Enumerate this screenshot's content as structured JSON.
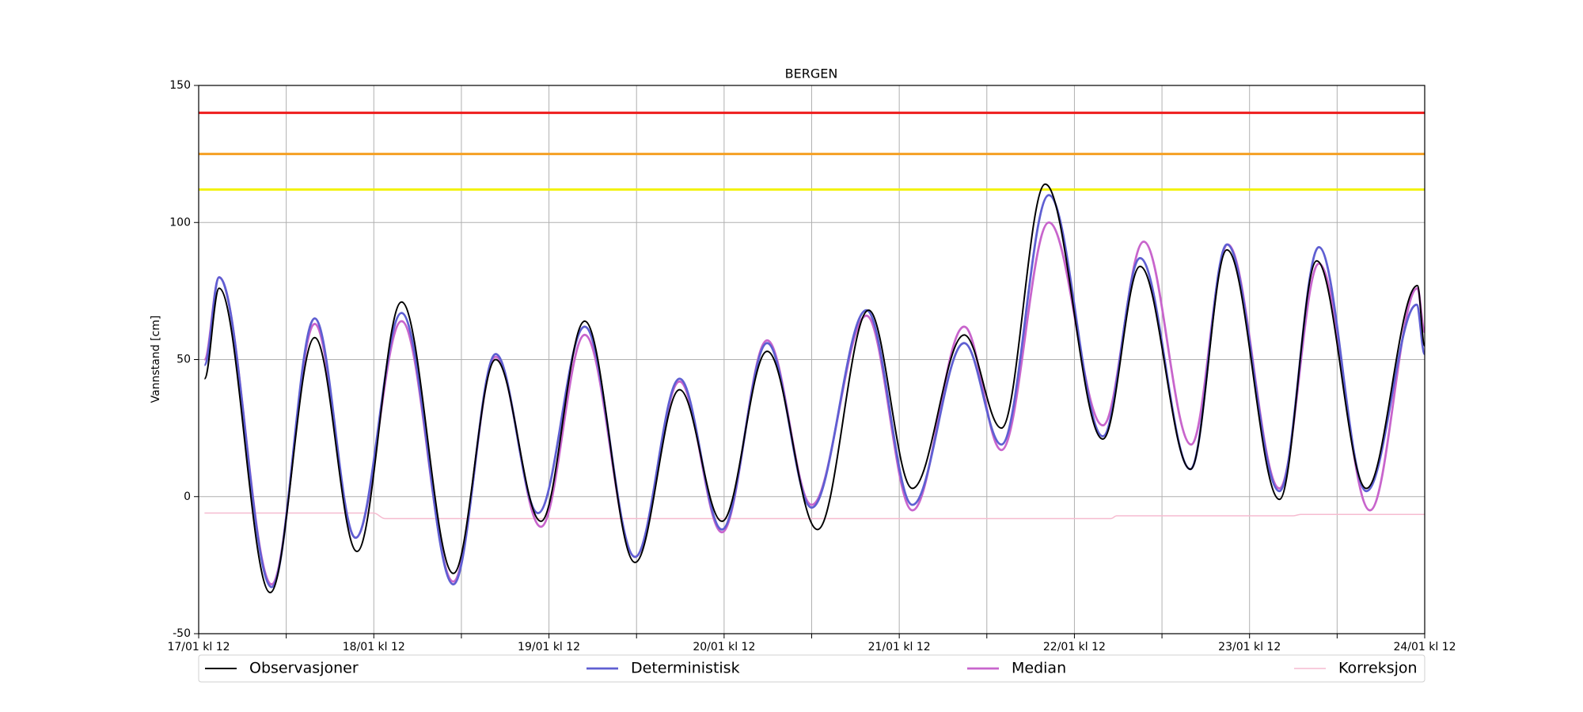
{
  "chart_data": {
    "type": "line",
    "title": "BERGEN",
    "ylabel": "Vannstand [cm]",
    "xlim": [
      0,
      168
    ],
    "ylim": [
      -50,
      150
    ],
    "yticks": [
      -50,
      0,
      50,
      100,
      150
    ],
    "xticks": [
      {
        "value": 0,
        "label": "17/01 kl 12"
      },
      {
        "value": 24,
        "label": "18/01 kl 12"
      },
      {
        "value": 48,
        "label": "19/01 kl 12"
      },
      {
        "value": 72,
        "label": "20/01 kl 12"
      },
      {
        "value": 96,
        "label": "21/01 kl 12"
      },
      {
        "value": 120,
        "label": "22/01 kl 12"
      },
      {
        "value": 144,
        "label": "23/01 kl 12"
      },
      {
        "value": 168,
        "label": "24/01 kl 12"
      }
    ],
    "xminor_ticks": [
      12,
      36,
      60,
      84,
      108,
      132,
      156
    ],
    "grid": true,
    "legend": "bottom",
    "thresholds": [
      {
        "value": 140,
        "color": "#ee1c1c"
      },
      {
        "value": 125,
        "color": "#f5a023"
      },
      {
        "value": 112,
        "color": "#f2f20a"
      }
    ],
    "series": [
      {
        "name": "Observasjoner",
        "color": "#000000",
        "width": 2,
        "x": [
          0.8,
          2.8,
          9.8,
          15.9,
          21.7,
          27.8,
          34.9,
          40.7,
          46.9,
          52.9,
          59.8,
          65.9,
          71.7,
          77.9,
          84.8,
          91.8,
          97.8,
          104.9,
          110,
          116,
          123.9,
          129,
          135.9,
          140.9,
          148.1,
          153.2,
          160,
          167,
          168
        ],
        "values": [
          43,
          76,
          -35,
          58,
          -20,
          71,
          -28,
          50,
          -9,
          64,
          -24,
          39,
          -9,
          53,
          -12,
          68,
          3,
          59,
          25,
          114,
          21,
          84,
          10,
          90,
          -1,
          86,
          3,
          77,
          55
        ]
      },
      {
        "name": "Deterministisk",
        "color": "#5f5fd2",
        "width": 2.8,
        "x": [
          0.8,
          2.8,
          10,
          15.9,
          21.5,
          27.8,
          34.9,
          40.7,
          46.5,
          52.9,
          59.8,
          65.9,
          71.7,
          77.9,
          84,
          91.5,
          97.8,
          104.9,
          110,
          116.5,
          123.9,
          129,
          135.9,
          140.9,
          148.1,
          153.5,
          160,
          166.9,
          168
        ],
        "values": [
          48,
          80,
          -33,
          65,
          -15,
          67,
          -32,
          52,
          -6,
          62,
          -22,
          43,
          -12,
          56,
          -4,
          68,
          -3,
          56,
          19,
          110,
          22,
          87,
          10,
          92,
          2,
          91,
          2,
          70,
          52
        ]
      },
      {
        "name": "Median",
        "color": "#c865cc",
        "width": 2.8,
        "x": [
          0.8,
          2.8,
          10,
          15.9,
          21.5,
          27.8,
          34.9,
          40.7,
          46.9,
          52.9,
          59.8,
          65.9,
          71.7,
          77.9,
          84,
          91.5,
          97.8,
          104.9,
          110,
          116.5,
          123.9,
          129.5,
          136,
          141,
          148.1,
          153.5,
          160.5,
          167,
          168
        ],
        "values": [
          50,
          80,
          -32,
          63,
          -15,
          64,
          -31,
          51,
          -11,
          59,
          -22,
          42,
          -13,
          57,
          -3,
          66,
          -5,
          62,
          17,
          100,
          26,
          93,
          19,
          92,
          3,
          85,
          -5,
          76,
          60
        ]
      },
      {
        "name": "Korreksjon",
        "color": "#f6bcd0",
        "width": 1.5,
        "x": [
          0.8,
          24,
          25.5,
          125,
          125.8,
          150,
          151,
          168
        ],
        "values": [
          -6,
          -6,
          -8,
          -8,
          -7,
          -7,
          -6.5,
          -6.5
        ]
      }
    ]
  }
}
